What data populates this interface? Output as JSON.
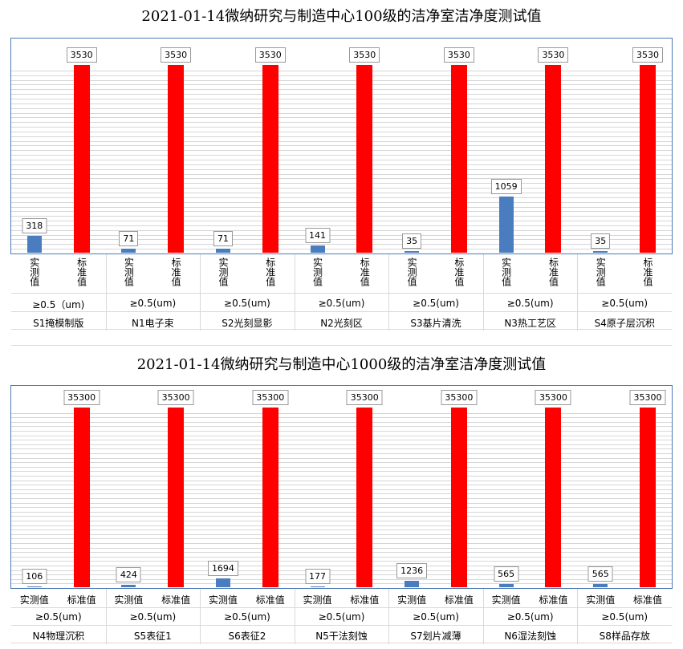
{
  "charts": [
    {
      "id": "top",
      "chart_data": {
        "type": "bar",
        "title": "2021-01-14微纳研究与制造中心100级的洁净室洁净度测试值",
        "categories": [
          "S1掩模制版",
          "N1电子束",
          "S2光刻显影",
          "N2光刻区",
          "S3基片清洗",
          "N3热工艺区",
          "S4原子层沉积"
        ],
        "subcategories": [
          "实测值",
          "标准值"
        ],
        "size_labels": [
          "≥0.5（um)",
          "≥0.5(um)",
          "≥0.5(um)",
          "≥0.5(um)",
          "≥0.5(um)",
          "≥0.5(um)",
          "≥0.5(um)"
        ],
        "series": [
          {
            "values": [
              318,
              71,
              71,
              141,
              35,
              1059,
              35
            ],
            "color": "#4a7dbf"
          },
          {
            "values": [
              3530,
              3530,
              3530,
              3530,
              3530,
              3530,
              3530
            ],
            "color": "#ff0000"
          }
        ],
        "ylim": [
          0,
          3530
        ],
        "grid": true,
        "legend": "none"
      }
    },
    {
      "id": "bot",
      "chart_data": {
        "type": "bar",
        "title": "2021-01-14微纳研究与制造中心1000级的洁净室洁净度测试值",
        "categories": [
          "N4物理沉积",
          "S5表征1",
          "S6表征2",
          "N5干法刻蚀",
          "S7划片减薄",
          "N6湿法刻蚀",
          "S8样品存放"
        ],
        "subcategories": [
          "实测值",
          "标准值"
        ],
        "size_labels": [
          "≥0.5(um)",
          "≥0.5(um)",
          "≥0.5(um)",
          "≥0.5(um)",
          "≥0.5(um)",
          "≥0.5(um)",
          "≥0.5(um)"
        ],
        "series": [
          {
            "values": [
              106,
              424,
              1694,
              177,
              1236,
              565,
              565
            ],
            "color": "#4a7dbf"
          },
          {
            "values": [
              35300,
              35300,
              35300,
              35300,
              35300,
              35300,
              35300
            ],
            "color": "#ff0000"
          }
        ],
        "ylim": [
          0,
          35300
        ],
        "grid": true,
        "legend": "none"
      }
    }
  ]
}
